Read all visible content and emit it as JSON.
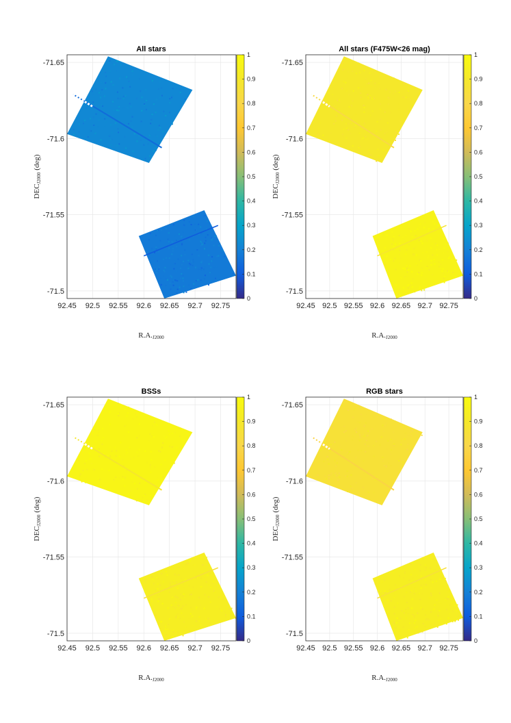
{
  "chart_data": [
    {
      "type": "heatmap",
      "title": "All stars",
      "xlabel": "R.A.",
      "xlabel_sub": "J2000",
      "ylabel": "DEC",
      "ylabel_sub": "J2000",
      "ylabel_unit": "(deg)",
      "xlim": [
        92.45,
        92.78
      ],
      "ylim": [
        -71.655,
        -71.495
      ],
      "xticks": [
        "92.45",
        "92.5",
        "92.55",
        "92.6",
        "92.65",
        "92.7",
        "92.75"
      ],
      "yticks": [
        "-71.65",
        "-71.6",
        "-71.55",
        "-71.5"
      ],
      "colorbar_ticks": [
        "0",
        "0.1",
        "0.2",
        "0.3",
        "0.4",
        "0.5",
        "0.6",
        "0.7",
        "0.8",
        "0.9",
        "1"
      ],
      "clim": [
        0,
        1
      ],
      "grid": true,
      "field1_value": 0.22,
      "field2_value": 0.18
    },
    {
      "type": "heatmap",
      "title": "All stars (F475W<26 mag)",
      "xlabel": "R.A.",
      "xlabel_sub": "J2000",
      "ylabel": "DEC",
      "ylabel_sub": "J2000",
      "ylabel_unit": "(deg)",
      "xlim": [
        92.45,
        92.78
      ],
      "ylim": [
        -71.655,
        -71.495
      ],
      "xticks": [
        "92.45",
        "92.5",
        "92.55",
        "92.6",
        "92.65",
        "92.7",
        "92.75"
      ],
      "yticks": [
        "-71.65",
        "-71.6",
        "-71.55",
        "-71.5"
      ],
      "colorbar_ticks": [
        "0",
        "0.1",
        "0.2",
        "0.3",
        "0.4",
        "0.5",
        "0.6",
        "0.7",
        "0.8",
        "0.9",
        "1"
      ],
      "clim": [
        0,
        1
      ],
      "grid": true,
      "field1_value": 0.9,
      "field2_value": 0.96
    },
    {
      "type": "heatmap",
      "title": "BSSs",
      "xlabel": "R.A.",
      "xlabel_sub": "J2000",
      "ylabel": "DEC",
      "ylabel_sub": "J2000",
      "ylabel_unit": "(deg)",
      "xlim": [
        92.45,
        92.78
      ],
      "ylim": [
        -71.655,
        -71.495
      ],
      "xticks": [
        "92.45",
        "92.5",
        "92.55",
        "92.6",
        "92.65",
        "92.7",
        "92.75"
      ],
      "yticks": [
        "-71.65",
        "-71.6",
        "-71.55",
        "-71.5"
      ],
      "colorbar_ticks": [
        "0",
        "0.1",
        "0.2",
        "0.3",
        "0.4",
        "0.5",
        "0.6",
        "0.7",
        "0.8",
        "0.9",
        "1"
      ],
      "clim": [
        0,
        1
      ],
      "grid": true,
      "field1_value": 0.97,
      "field2_value": 0.93
    },
    {
      "type": "heatmap",
      "title": "RGB stars",
      "xlabel": "R.A.",
      "xlabel_sub": "J2000",
      "ylabel": "DEC",
      "ylabel_sub": "J2000",
      "ylabel_unit": "(deg)",
      "xlim": [
        92.45,
        92.78
      ],
      "ylim": [
        -71.655,
        -71.495
      ],
      "xticks": [
        "92.45",
        "92.5",
        "92.55",
        "92.6",
        "92.65",
        "92.7",
        "92.75"
      ],
      "yticks": [
        "-71.65",
        "-71.6",
        "-71.55",
        "-71.5"
      ],
      "colorbar_ticks": [
        "0",
        "0.1",
        "0.2",
        "0.3",
        "0.4",
        "0.5",
        "0.6",
        "0.7",
        "0.8",
        "0.9",
        "1"
      ],
      "clim": [
        0,
        1
      ],
      "grid": true,
      "field1_value": 0.86,
      "field2_value": 0.93
    }
  ],
  "colors": {
    "grid": "#e8e8e8",
    "axis": "#262626",
    "tick_text": "#262626",
    "gap_stripe": "#ffffff"
  }
}
